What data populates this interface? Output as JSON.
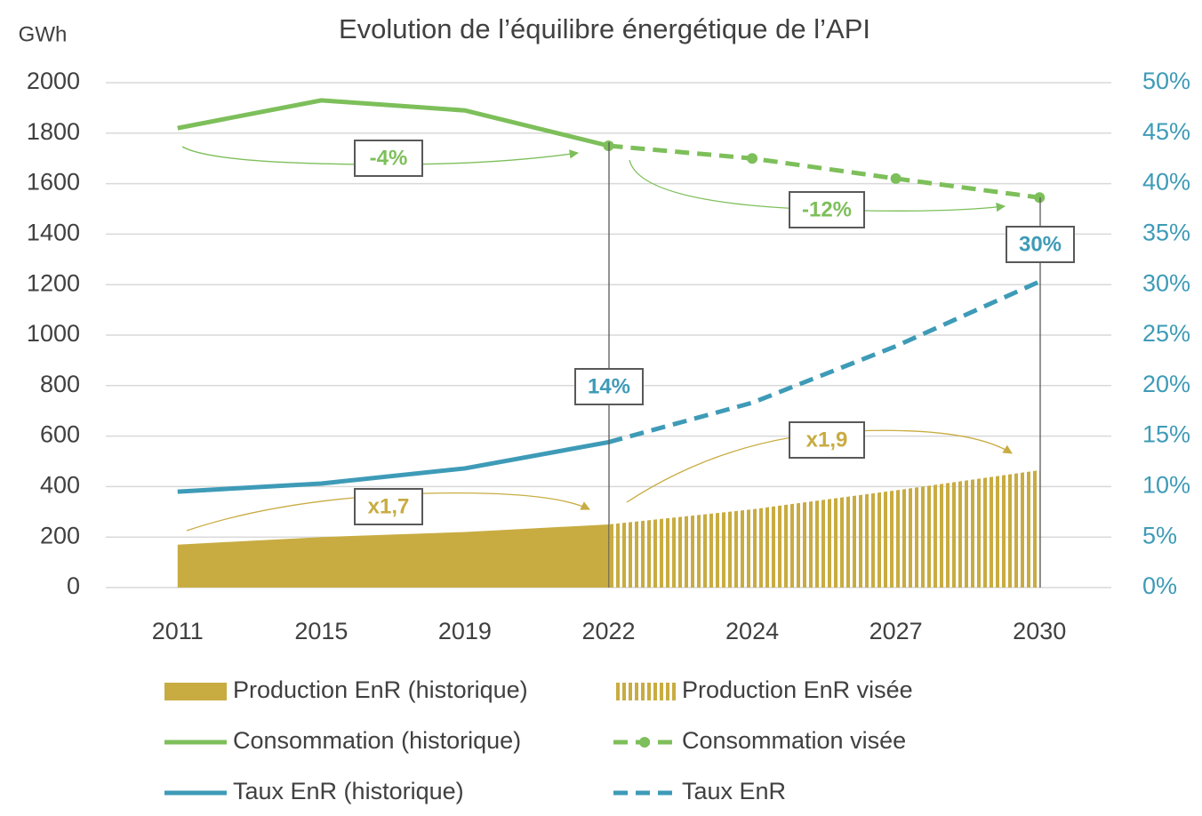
{
  "chart_data": {
    "type": "combo",
    "title": "Evolution de l’équilibre énergétique de l’API",
    "y_label": "GWh",
    "categories": [
      "2011",
      "2015",
      "2019",
      "2022",
      "2024",
      "2027",
      "2030"
    ],
    "ylim": [
      0,
      2000
    ],
    "yticks": [
      0,
      200,
      400,
      600,
      800,
      1000,
      1200,
      1400,
      1600,
      1800,
      2000
    ],
    "y2lim": [
      0,
      50
    ],
    "y2ticks": [
      {
        "value": 0,
        "label": "0%"
      },
      {
        "value": 5,
        "label": "5%"
      },
      {
        "value": 10,
        "label": "10%"
      },
      {
        "value": 15,
        "label": "15%"
      },
      {
        "value": 20,
        "label": "20%"
      },
      {
        "value": 25,
        "label": "25%"
      },
      {
        "value": 30,
        "label": "30%"
      },
      {
        "value": 35,
        "label": "35%"
      },
      {
        "value": 40,
        "label": "40%"
      },
      {
        "value": 45,
        "label": "45%"
      },
      {
        "value": 50,
        "label": "50%"
      }
    ],
    "y2color": "#3e9bb7",
    "grid": true,
    "series": [
      {
        "name": "Production EnR (historique)",
        "type": "area",
        "color": "#c8ac42",
        "values": [
          170,
          200,
          220,
          250,
          null,
          null,
          null
        ]
      },
      {
        "name": "Production EnR visée",
        "type": "area",
        "pattern": "hatched",
        "color": "#c8ac42",
        "values": [
          null,
          null,
          null,
          250,
          310,
          385,
          465
        ]
      },
      {
        "name": "Consommation (historique)",
        "type": "line",
        "color": "#7dbf5a",
        "values": [
          1820,
          1930,
          1890,
          1750,
          null,
          null,
          null
        ]
      },
      {
        "name": "Consommation visée",
        "type": "line",
        "dashed": true,
        "markers": true,
        "color": "#7dbf5a",
        "values": [
          null,
          null,
          null,
          1750,
          1700,
          1620,
          1545
        ]
      },
      {
        "name": "Taux EnR (historique)",
        "type": "line",
        "axis": "y2",
        "color": "#3e9bb7",
        "values": [
          9.5,
          10.3,
          11.8,
          14.4,
          null,
          null,
          null
        ]
      },
      {
        "name": "Taux EnR",
        "type": "line",
        "axis": "y2",
        "dashed": true,
        "color": "#3e9bb7",
        "values": [
          null,
          null,
          null,
          14.4,
          18.3,
          23.9,
          30.3
        ]
      }
    ],
    "annotations": [
      {
        "text": "-4%",
        "color": "#7dbf5a"
      },
      {
        "text": "-12%",
        "color": "#7dbf5a"
      },
      {
        "text": "30%",
        "color": "#3e9bb7"
      },
      {
        "text": "14%",
        "color": "#3e9bb7"
      },
      {
        "text": "x1,7",
        "color": "#c8ac42"
      },
      {
        "text": "x1,9",
        "color": "#c8ac42"
      }
    ]
  }
}
